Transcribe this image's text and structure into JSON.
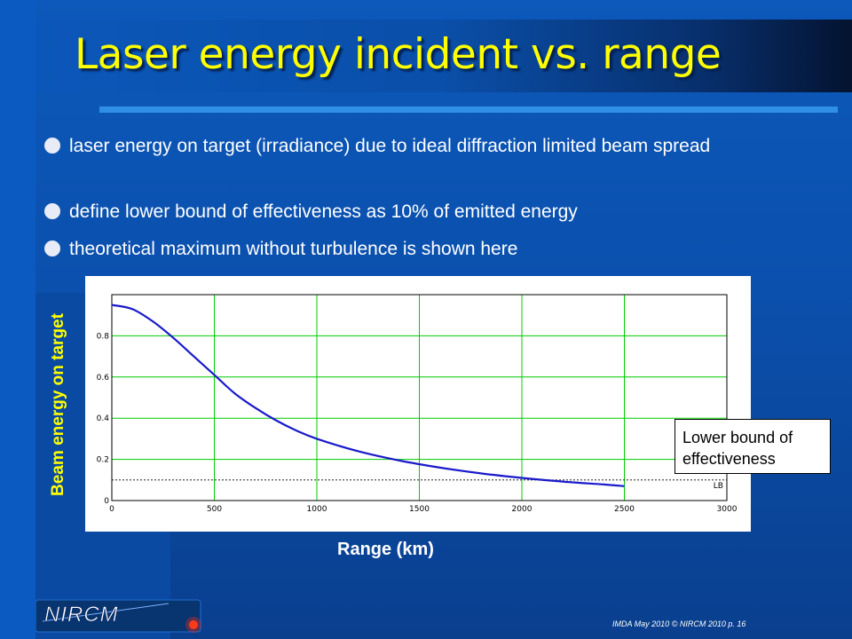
{
  "slide": {
    "title": "Laser energy incident vs. range",
    "bullets": [
      "laser energy on target (irradiance) due to ideal diffraction limited beam spread",
      "define lower bound of effectiveness as 10% of emitted energy",
      "theoretical maximum without turbulence is shown here"
    ],
    "footer": "IMDA May 2010 © NIRCM 2010 p. 16",
    "logo_text": "NIRCM",
    "colors": {
      "background": "#0b50ad",
      "title": "#ffff00",
      "curve": "#1a1acc",
      "grid": "#00cc00",
      "logo_dot": "#ff2a1a"
    }
  },
  "chart_data": {
    "type": "line",
    "xlabel": "Range (km)",
    "ylabel": "Beam energy on target",
    "xlim": [
      0,
      3000
    ],
    "ylim": [
      0,
      1
    ],
    "x_ticks": [
      "0",
      "500",
      "1000",
      "1500",
      "2000",
      "2500",
      "3000"
    ],
    "y_ticks": [
      "0",
      "0.2",
      "0.4",
      "0.6",
      "0.8"
    ],
    "grid": true,
    "series": [
      {
        "x": [
          0,
          100,
          200,
          300,
          400,
          500,
          600,
          700,
          800,
          900,
          1000,
          1200,
          1400,
          1600,
          1800,
          2000,
          2200,
          2400,
          2500
        ],
        "y": [
          0.95,
          0.93,
          0.87,
          0.79,
          0.7,
          0.61,
          0.52,
          0.45,
          0.39,
          0.34,
          0.3,
          0.24,
          0.195,
          0.16,
          0.132,
          0.11,
          0.092,
          0.078,
          0.07
        ]
      }
    ],
    "threshold": {
      "y": 0.1,
      "label": "LB"
    },
    "annotation": "Lower bound of effectiveness"
  }
}
